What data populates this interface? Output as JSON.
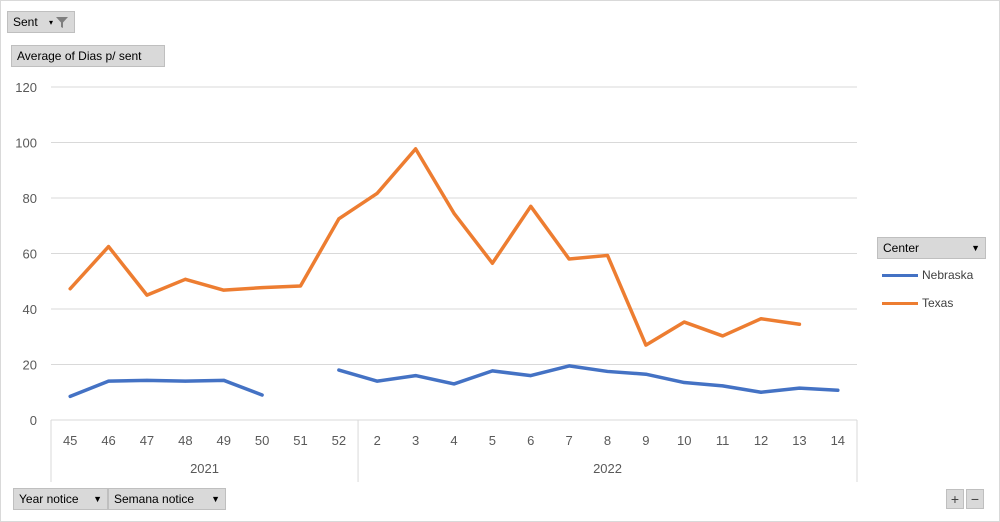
{
  "filter_button": {
    "label": "Sent"
  },
  "value_button": {
    "label": "Average of Dias p/ sent"
  },
  "axis_buttons": [
    {
      "label": "Year notice"
    },
    {
      "label": "Semana notice"
    }
  ],
  "legend": {
    "title": "Center"
  },
  "zoom": {
    "plus": "+",
    "minus": "−"
  },
  "colors": {
    "Nebraska": "#4472C4",
    "Texas": "#ED7D31",
    "grid": "#d9d9d9"
  },
  "chart_data": {
    "type": "line",
    "categories": [
      "45",
      "46",
      "47",
      "48",
      "49",
      "50",
      "51",
      "52",
      "2",
      "3",
      "4",
      "5",
      "6",
      "7",
      "8",
      "9",
      "10",
      "11",
      "12",
      "13",
      "14"
    ],
    "groups": [
      {
        "label": "2021",
        "count": 8
      },
      {
        "label": "2022",
        "count": 13
      }
    ],
    "ylim": [
      0,
      120
    ],
    "yticks": [
      0,
      20,
      40,
      60,
      80,
      100,
      120
    ],
    "grid": true,
    "legend_position": "right",
    "series": [
      {
        "name": "Nebraska",
        "values": [
          8.5,
          14,
          14.3,
          14,
          14.3,
          9,
          null,
          18,
          14,
          16,
          13,
          17.7,
          16,
          19.5,
          17.5,
          16.5,
          13.5,
          12.3,
          10,
          11.5,
          10.7
        ]
      },
      {
        "name": "Texas",
        "values": [
          47.3,
          62.5,
          45,
          50.7,
          46.8,
          47.7,
          48.3,
          72.5,
          81.7,
          97.7,
          74.5,
          56.5,
          77,
          58,
          59.3,
          27,
          35.3,
          30.3,
          36.5,
          34.5,
          null
        ]
      }
    ]
  }
}
